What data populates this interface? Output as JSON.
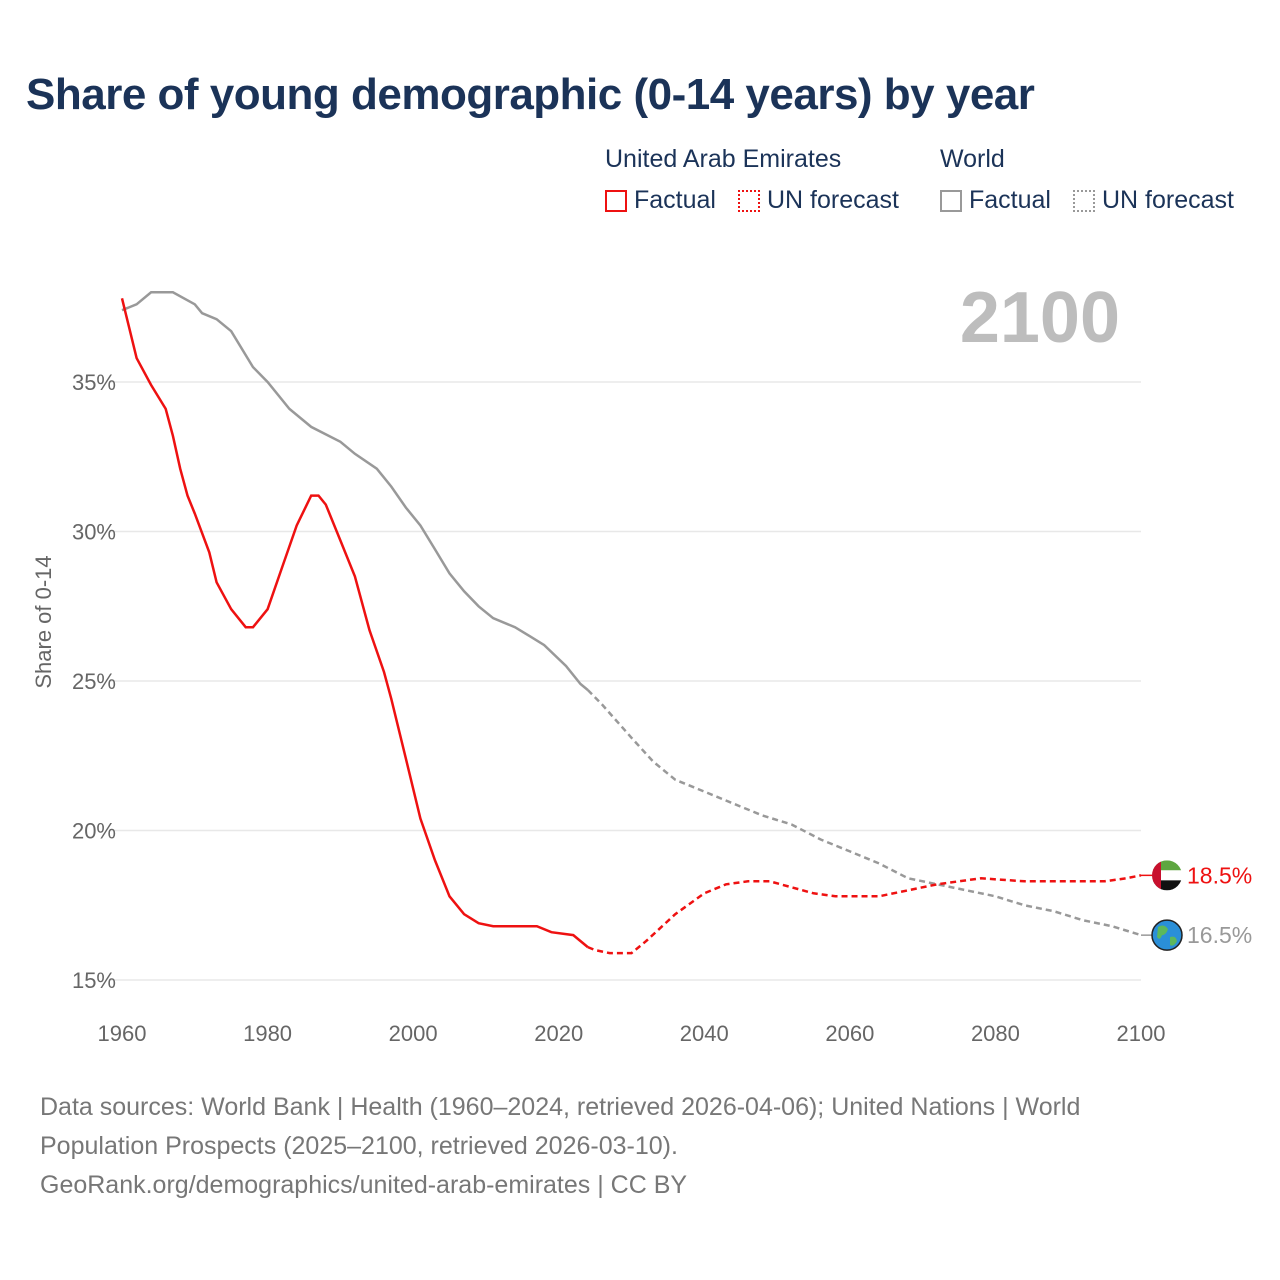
{
  "title": "Share of young demographic (0-14 years) by year",
  "legend": {
    "groups": [
      {
        "name": "United Arab Emirates",
        "factual": "Factual",
        "forecast": "UN forecast",
        "color": "#ee1111"
      },
      {
        "name": "World",
        "factual": "Factual",
        "forecast": "UN forecast",
        "color": "#999999"
      }
    ]
  },
  "year_watermark": "2100",
  "chart_data": {
    "type": "line",
    "title": "Share of young demographic (0-14 years) by year",
    "xlabel": "",
    "ylabel": "Share of 0-14",
    "xlim": [
      1960,
      2100
    ],
    "ylim": [
      15,
      38
    ],
    "x_ticks": [
      "1960",
      "1980",
      "2000",
      "2020",
      "2040",
      "2060",
      "2080",
      "2100"
    ],
    "y_ticks": [
      "15%",
      "20%",
      "25%",
      "30%",
      "35%"
    ],
    "grid": true,
    "factual_end": 2024,
    "series": [
      {
        "name": "United Arab Emirates",
        "color": "#ee1111",
        "end_label": "18.5%",
        "icon": "uae-flag-icon",
        "points": [
          [
            1960,
            37.8
          ],
          [
            1962,
            35.8
          ],
          [
            1964,
            34.9
          ],
          [
            1966,
            34.1
          ],
          [
            1967,
            33.2
          ],
          [
            1968,
            32.1
          ],
          [
            1969,
            31.2
          ],
          [
            1970,
            30.6
          ],
          [
            1972,
            29.3
          ],
          [
            1973,
            28.3
          ],
          [
            1975,
            27.4
          ],
          [
            1977,
            26.8
          ],
          [
            1978,
            26.8
          ],
          [
            1980,
            27.4
          ],
          [
            1982,
            28.8
          ],
          [
            1984,
            30.2
          ],
          [
            1986,
            31.2
          ],
          [
            1987,
            31.2
          ],
          [
            1988,
            30.9
          ],
          [
            1990,
            29.7
          ],
          [
            1992,
            28.5
          ],
          [
            1994,
            26.7
          ],
          [
            1996,
            25.3
          ],
          [
            1997,
            24.4
          ],
          [
            1999,
            22.4
          ],
          [
            2001,
            20.4
          ],
          [
            2003,
            19.0
          ],
          [
            2005,
            17.8
          ],
          [
            2007,
            17.2
          ],
          [
            2009,
            16.9
          ],
          [
            2011,
            16.8
          ],
          [
            2013,
            16.8
          ],
          [
            2017,
            16.8
          ],
          [
            2019,
            16.6
          ],
          [
            2022,
            16.5
          ],
          [
            2024,
            16.1
          ],
          [
            2025,
            16.0
          ],
          [
            2027,
            15.9
          ],
          [
            2030,
            15.9
          ],
          [
            2032,
            16.3
          ],
          [
            2036,
            17.2
          ],
          [
            2040,
            17.9
          ],
          [
            2043,
            18.2
          ],
          [
            2046,
            18.3
          ],
          [
            2049,
            18.3
          ],
          [
            2052,
            18.1
          ],
          [
            2055,
            17.9
          ],
          [
            2058,
            17.8
          ],
          [
            2064,
            17.8
          ],
          [
            2068,
            18.0
          ],
          [
            2072,
            18.2
          ],
          [
            2075,
            18.3
          ],
          [
            2078,
            18.4
          ],
          [
            2084,
            18.3
          ],
          [
            2090,
            18.3
          ],
          [
            2095,
            18.3
          ],
          [
            2098,
            18.4
          ],
          [
            2100,
            18.5
          ]
        ]
      },
      {
        "name": "World",
        "color": "#999999",
        "end_label": "16.5%",
        "icon": "globe-icon",
        "points": [
          [
            1960,
            37.4
          ],
          [
            1962,
            37.6
          ],
          [
            1964,
            38.0
          ],
          [
            1967,
            38.0
          ],
          [
            1970,
            37.6
          ],
          [
            1971,
            37.3
          ],
          [
            1973,
            37.1
          ],
          [
            1975,
            36.7
          ],
          [
            1978,
            35.5
          ],
          [
            1980,
            35.0
          ],
          [
            1983,
            34.1
          ],
          [
            1986,
            33.5
          ],
          [
            1990,
            33.0
          ],
          [
            1992,
            32.6
          ],
          [
            1995,
            32.1
          ],
          [
            1997,
            31.5
          ],
          [
            1999,
            30.8
          ],
          [
            2001,
            30.2
          ],
          [
            2003,
            29.4
          ],
          [
            2005,
            28.6
          ],
          [
            2007,
            28.0
          ],
          [
            2009,
            27.5
          ],
          [
            2011,
            27.1
          ],
          [
            2014,
            26.8
          ],
          [
            2016,
            26.5
          ],
          [
            2018,
            26.2
          ],
          [
            2021,
            25.5
          ],
          [
            2023,
            24.9
          ],
          [
            2024,
            24.7
          ],
          [
            2026,
            24.2
          ],
          [
            2030,
            23.1
          ],
          [
            2033,
            22.3
          ],
          [
            2036,
            21.7
          ],
          [
            2040,
            21.3
          ],
          [
            2044,
            20.9
          ],
          [
            2048,
            20.5
          ],
          [
            2052,
            20.2
          ],
          [
            2056,
            19.7
          ],
          [
            2060,
            19.3
          ],
          [
            2064,
            18.9
          ],
          [
            2068,
            18.4
          ],
          [
            2072,
            18.2
          ],
          [
            2076,
            18.0
          ],
          [
            2080,
            17.8
          ],
          [
            2084,
            17.5
          ],
          [
            2088,
            17.3
          ],
          [
            2092,
            17.0
          ],
          [
            2096,
            16.8
          ],
          [
            2100,
            16.5
          ]
        ]
      }
    ]
  },
  "footer": {
    "line1": "Data sources: World Bank | Health (1960–2024, retrieved 2026-04-06); United Nations | World Population Prospects (2025–2100, retrieved 2026-03-10).",
    "line2": "GeoRank.org/demographics/united-arab-emirates | CC BY"
  }
}
